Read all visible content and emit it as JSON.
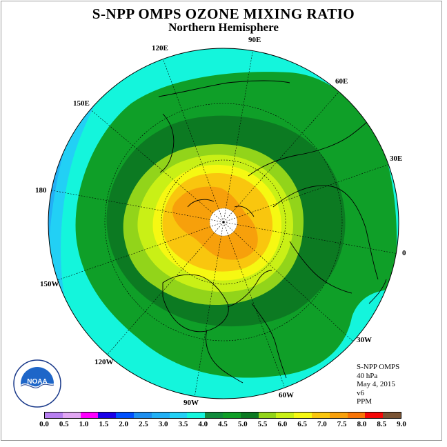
{
  "title": "S-NPP OMPS OZONE MIXING RATIO",
  "subtitle": "Northern Hemisphere",
  "longitude_labels": [
    {
      "text": "90E"
    },
    {
      "text": "120E"
    },
    {
      "text": "60E"
    },
    {
      "text": "150E"
    },
    {
      "text": "30E"
    },
    {
      "text": "180"
    },
    {
      "text": "0"
    },
    {
      "text": "150W"
    },
    {
      "text": "30W"
    },
    {
      "text": "120W"
    },
    {
      "text": "60W"
    },
    {
      "text": "90W"
    }
  ],
  "info": {
    "instrument": "S-NPP OMPS",
    "level": "40 hPa",
    "date": "May 4, 2015",
    "version": "v6",
    "units": "PPM"
  },
  "colorbar": {
    "colors": [
      "#b77ff0",
      "#e1a6f2",
      "#ff00ff",
      "#1a00e8",
      "#0050ff",
      "#1e8ff0",
      "#22b0f5",
      "#22d0f5",
      "#14f5dc",
      "#108b3c",
      "#0f9f28",
      "#0c7a22",
      "#92d41a",
      "#c9f016",
      "#f6f812",
      "#f9c60e",
      "#f7a00b",
      "#f77407",
      "#f40707",
      "#7a5434"
    ],
    "ticks": [
      "0.0",
      "0.5",
      "1.0",
      "1.5",
      "2.0",
      "2.5",
      "3.0",
      "3.5",
      "4.0",
      "4.5",
      "5.0",
      "5.5",
      "6.0",
      "6.5",
      "7.0",
      "7.5",
      "8.0",
      "8.5",
      "9.0"
    ]
  },
  "map_colors": {
    "band_3_0": "#22b0f5",
    "band_3_5": "#22d0f5",
    "band_4_0": "#14f5dc",
    "band_4_5": "#0f9f28",
    "band_5_0": "#0c7a22",
    "band_5_5": "#92d41a",
    "band_6_0": "#c9f016",
    "band_6_5": "#f6f812",
    "band_7_0": "#f9c60e",
    "band_7_5": "#f7a00b",
    "pole_fill": "#ffffff"
  },
  "logo": {
    "text": "NOAA"
  }
}
